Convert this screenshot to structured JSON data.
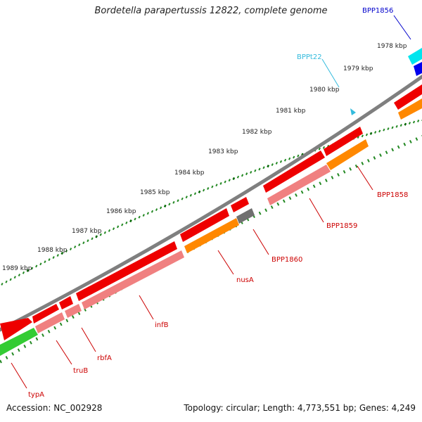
{
  "title": "Bordetella parapertussis 12822, complete genome",
  "footer": {
    "accession": "Accession: NC_002928",
    "summary": "Topology: circular; Length: 4,773,551 bp; Genes: 4,249"
  },
  "ruler": {
    "unit": "kbp",
    "labels": [
      "1978 kbp",
      "1979 kbp",
      "1980 kbp",
      "1981 kbp",
      "1982 kbp",
      "1983 kbp",
      "1984 kbp",
      "1985 kbp",
      "1986 kbp",
      "1987 kbp",
      "1988 kbp",
      "1989 kbp"
    ]
  },
  "gene_labels": [
    {
      "id": "BPP1856",
      "text": "BPP1856",
      "color": "#0000cc"
    },
    {
      "id": "BPPt22",
      "text": "BPPt22",
      "color": "#33bbdd"
    },
    {
      "id": "BPP1858",
      "text": "BPP1858",
      "color": "#cc0000"
    },
    {
      "id": "BPP1859",
      "text": "BPP1859",
      "color": "#cc0000"
    },
    {
      "id": "BPP1860",
      "text": "BPP1860",
      "color": "#cc0000"
    },
    {
      "id": "nusA",
      "text": "nusA",
      "color": "#cc0000"
    },
    {
      "id": "infB",
      "text": "infB",
      "color": "#cc0000"
    },
    {
      "id": "rbfA",
      "text": "rbfA",
      "color": "#cc0000"
    },
    {
      "id": "truB",
      "text": "truB",
      "color": "#cc0000"
    },
    {
      "id": "typA",
      "text": "typA",
      "color": "#cc0000"
    }
  ],
  "colors": {
    "backbone": "#808080",
    "gene_forward": "#ee0000",
    "gene_reverse_light": "#f08080",
    "cds_orange": "#ff8800",
    "trna_cyan": "#00e5ee",
    "rna_blue": "#0000ee",
    "hypothetical_gray": "#707070",
    "other_green": "#33cc33",
    "ticks_major": "#006600",
    "ticks_minor": "#228822"
  }
}
